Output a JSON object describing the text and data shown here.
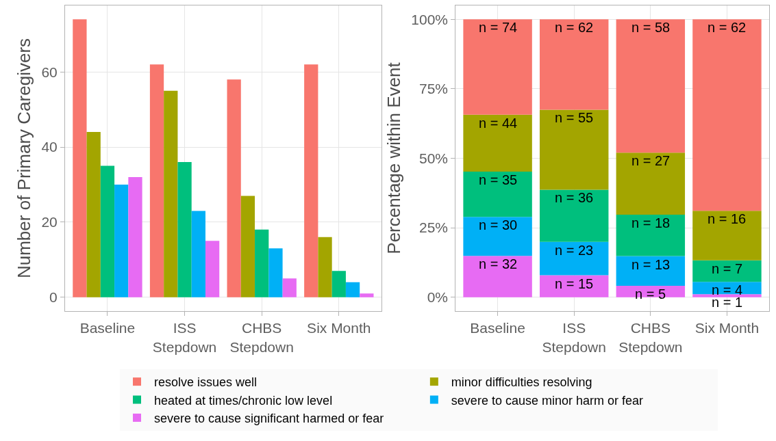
{
  "chart_data": [
    {
      "type": "bar",
      "ylabel": "Number of Primary Caregivers",
      "categories": [
        "Baseline",
        "ISS\nStepdown",
        "CHBS\nStepdown",
        "Six Month"
      ],
      "series": [
        {
          "name": "resolve issues well",
          "color": "#f8766d",
          "values": [
            74,
            62,
            58,
            62
          ]
        },
        {
          "name": "minor difficulties resolving",
          "color": "#a3a500",
          "values": [
            44,
            55,
            27,
            16
          ]
        },
        {
          "name": "heated at times/chronic low level",
          "color": "#00bf7d",
          "values": [
            35,
            36,
            18,
            7
          ]
        },
        {
          "name": "severe to cause minor harm or fear",
          "color": "#00b0f6",
          "values": [
            30,
            23,
            13,
            4
          ]
        },
        {
          "name": "severe to cause significant harmed or fear",
          "color": "#e76bf3",
          "values": [
            32,
            15,
            5,
            1
          ]
        }
      ],
      "ylim": [
        -3.7,
        77.7
      ],
      "yticks": [
        0,
        20,
        40,
        60
      ],
      "grid": true,
      "legend": "bottom"
    },
    {
      "type": "bar",
      "stacked": true,
      "ylabel": "Percentage within Event",
      "categories": [
        "Baseline",
        "ISS\nStepdown",
        "CHBS\nStepdown",
        "Six Month"
      ],
      "series": [
        {
          "color": "#e76bf3",
          "values": [
            14.9,
            7.9,
            4.1,
            1.1
          ]
        },
        {
          "color": "#00b0f6",
          "values": [
            14.0,
            12.0,
            10.7,
            4.4
          ]
        },
        {
          "color": "#00bf7d",
          "values": [
            16.3,
            18.8,
            14.9,
            7.8
          ]
        },
        {
          "color": "#a3a500",
          "values": [
            20.5,
            28.8,
            22.3,
            17.8
          ]
        },
        {
          "color": "#f8766d",
          "values": [
            34.3,
            32.5,
            48.0,
            68.9
          ]
        }
      ],
      "annotations": [
        {
          "text": "n = 32",
          "x": "Baseline",
          "y": 14.9
        },
        {
          "text": "n = 15",
          "x": "ISS\nStepdown",
          "y": 7.9
        },
        {
          "text": "n = 5",
          "x": "CHBS\nStepdown",
          "y": 4.1
        },
        {
          "text": "n = 1",
          "x": "Six Month",
          "y": 1.1
        },
        {
          "text": "n = 30",
          "x": "Baseline",
          "y": 28.9
        },
        {
          "text": "n = 23",
          "x": "ISS\nStepdown",
          "y": 19.9
        },
        {
          "text": "n = 13",
          "x": "CHBS\nStepdown",
          "y": 14.8
        },
        {
          "text": "n = 4",
          "x": "Six Month",
          "y": 5.5
        },
        {
          "text": "n = 35",
          "x": "Baseline",
          "y": 45.2
        },
        {
          "text": "n = 36",
          "x": "ISS\nStepdown",
          "y": 38.7
        },
        {
          "text": "n = 18",
          "x": "CHBS\nStepdown",
          "y": 29.7
        },
        {
          "text": "n = 7",
          "x": "Six Month",
          "y": 13.3
        },
        {
          "text": "n = 44",
          "x": "Baseline",
          "y": 65.7
        },
        {
          "text": "n = 55",
          "x": "ISS\nStepdown",
          "y": 67.5
        },
        {
          "text": "n = 27",
          "x": "CHBS\nStepdown",
          "y": 52.0
        },
        {
          "text": "n = 16",
          "x": "Six Month",
          "y": 31.1
        },
        {
          "text": "n = 74",
          "x": "Baseline",
          "y": 100
        },
        {
          "text": "n = 62",
          "x": "ISS\nStepdown",
          "y": 100
        },
        {
          "text": "n = 58",
          "x": "CHBS\nStepdown",
          "y": 100
        },
        {
          "text": "n = 62",
          "x": "Six Month",
          "y": 100
        }
      ],
      "ylim": [
        -5,
        105
      ],
      "yticks": [
        {
          "value": 0,
          "label": "0%"
        },
        {
          "value": 25,
          "label": "25%"
        },
        {
          "value": 50,
          "label": "50%"
        },
        {
          "value": 75,
          "label": "75%"
        },
        {
          "value": 100,
          "label": "100%"
        }
      ],
      "grid": true
    }
  ]
}
